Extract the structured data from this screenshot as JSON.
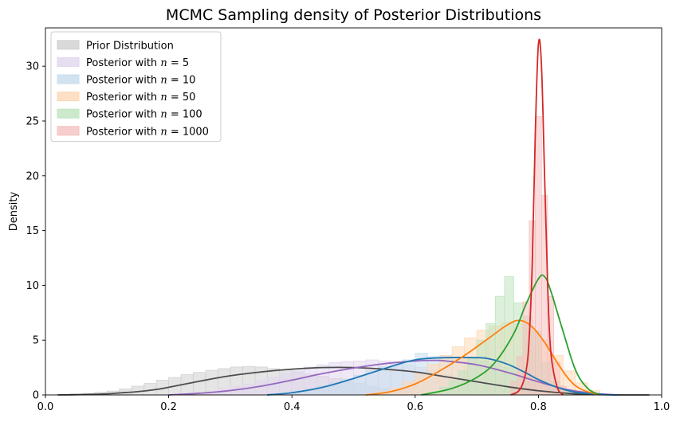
{
  "chart_data": {
    "type": "area",
    "title": "MCMC Sampling density of Posterior Distributions",
    "xlabel": "",
    "ylabel": "Density",
    "xlim": [
      0.0,
      1.0
    ],
    "ylim": [
      0,
      33.5
    ],
    "xticks": [
      "0.0",
      "0.2",
      "0.4",
      "0.6",
      "0.8",
      "1.0"
    ],
    "xtick_values": [
      0.0,
      0.2,
      0.4,
      0.6,
      0.8,
      1.0
    ],
    "yticks": [
      "0",
      "5",
      "10",
      "15",
      "20",
      "25",
      "30"
    ],
    "ytick_values": [
      0,
      5,
      10,
      15,
      20,
      25,
      30
    ],
    "grid": false,
    "legend_position": "top-left",
    "series": [
      {
        "name": "Prior Distribution",
        "color": "#4d4d4d",
        "hist_color": "#d0d0d0",
        "hist": {
          "bin_width": 0.02,
          "edges_start": 0.02,
          "heights": [
            0.05,
            0.1,
            0.15,
            0.25,
            0.35,
            0.55,
            0.8,
            1.05,
            1.35,
            1.6,
            1.85,
            2.05,
            2.25,
            2.4,
            2.55,
            2.6,
            2.55,
            2.4,
            2.3,
            2.1,
            1.9,
            1.7,
            1.5,
            1.25,
            1.05,
            0.8,
            0.6,
            0.45,
            0.3,
            0.2,
            0.12,
            0.08,
            0.05,
            0.03,
            0.02,
            0.01,
            0.01,
            0.01,
            0.005,
            0.005,
            0.003,
            0.003,
            0.002,
            0.002,
            0.001,
            0.001,
            0.001,
            0.001,
            0.0
          ]
        },
        "kde": {
          "x": [
            0.02,
            0.05,
            0.08,
            0.1,
            0.12,
            0.15,
            0.18,
            0.2,
            0.25,
            0.3,
            0.35,
            0.4,
            0.45,
            0.5,
            0.55,
            0.6,
            0.65,
            0.7,
            0.75,
            0.8,
            0.85,
            0.9,
            0.95,
            0.98
          ],
          "y": [
            0.0,
            0.02,
            0.06,
            0.1,
            0.18,
            0.3,
            0.5,
            0.7,
            1.25,
            1.75,
            2.1,
            2.35,
            2.5,
            2.5,
            2.35,
            2.1,
            1.65,
            1.2,
            0.75,
            0.38,
            0.14,
            0.03,
            0.0,
            0.0
          ]
        }
      },
      {
        "name": "Posterior with n = 5",
        "name_prefix": "Posterior with ",
        "name_italic": "n",
        "name_suffix": " = 5",
        "color": "#9467bd",
        "hist_color": "#e2d6ef",
        "hist": {
          "bin_width": 0.02,
          "edges_start": 0.2,
          "heights": [
            0.05,
            0.1,
            0.2,
            0.35,
            0.55,
            0.75,
            1.0,
            1.3,
            1.6,
            1.95,
            2.25,
            2.55,
            2.75,
            2.95,
            3.05,
            3.1,
            3.2,
            3.1,
            3.0,
            2.75,
            2.5,
            2.2,
            1.85,
            1.5,
            1.15,
            0.8,
            0.55,
            0.35,
            0.2,
            0.1,
            0.05,
            0.02
          ]
        },
        "kde": {
          "x": [
            0.2,
            0.25,
            0.3,
            0.35,
            0.4,
            0.45,
            0.5,
            0.55,
            0.6,
            0.63,
            0.65,
            0.7,
            0.75,
            0.8,
            0.85,
            0.9,
            0.93
          ],
          "y": [
            0.0,
            0.15,
            0.4,
            0.8,
            1.35,
            1.95,
            2.45,
            2.85,
            3.1,
            3.15,
            3.1,
            2.75,
            2.05,
            1.2,
            0.45,
            0.1,
            0.0
          ]
        }
      },
      {
        "name": "Posterior with n = 10",
        "name_prefix": "Posterior with ",
        "name_italic": "n",
        "name_suffix": " = 10",
        "color": "#1f77b4",
        "hist_color": "#c7dcec",
        "hist": {
          "bin_width": 0.02,
          "edges_start": 0.36,
          "heights": [
            0.1,
            0.2,
            0.35,
            0.55,
            0.8,
            1.1,
            1.45,
            1.8,
            2.2,
            2.6,
            2.95,
            3.2,
            3.8,
            3.5,
            3.55,
            3.4,
            3.3,
            3.1,
            2.85,
            2.5,
            2.1,
            1.7,
            1.25,
            0.85,
            0.5,
            0.25,
            0.1,
            0.05
          ]
        },
        "kde": {
          "x": [
            0.36,
            0.4,
            0.45,
            0.5,
            0.55,
            0.6,
            0.65,
            0.7,
            0.72,
            0.75,
            0.78,
            0.8,
            0.83,
            0.86,
            0.9,
            0.93
          ],
          "y": [
            0.0,
            0.2,
            0.7,
            1.5,
            2.4,
            3.2,
            3.4,
            3.4,
            3.3,
            2.8,
            2.0,
            1.4,
            0.7,
            0.25,
            0.05,
            0.0
          ]
        }
      },
      {
        "name": "Posterior with n = 50",
        "name_prefix": "Posterior with ",
        "name_italic": "n",
        "name_suffix": " = 50",
        "color": "#ff7f0e",
        "hist_color": "#fdd8b5",
        "hist": {
          "bin_width": 0.02,
          "edges_start": 0.52,
          "heights": [
            0.1,
            0.3,
            0.6,
            1.2,
            2.0,
            2.8,
            3.6,
            4.4,
            5.2,
            5.9,
            6.3,
            6.6,
            6.5,
            5.9,
            5.0,
            3.6,
            2.2,
            1.1,
            0.4,
            0.1
          ]
        },
        "kde": {
          "x": [
            0.52,
            0.56,
            0.6,
            0.64,
            0.68,
            0.72,
            0.75,
            0.77,
            0.79,
            0.81,
            0.83,
            0.85,
            0.87,
            0.9
          ],
          "y": [
            0.0,
            0.3,
            1.0,
            2.2,
            3.6,
            5.2,
            6.4,
            6.8,
            6.2,
            4.8,
            3.0,
            1.4,
            0.5,
            0.0
          ]
        }
      },
      {
        "name": "Posterior with n = 100",
        "name_prefix": "Posterior with ",
        "name_italic": "n",
        "name_suffix": " = 100",
        "color": "#2ca02c",
        "hist_color": "#bfe3bf",
        "hist": {
          "bin_width": 0.015,
          "edges_start": 0.61,
          "heights": [
            0.1,
            0.3,
            0.7,
            1.3,
            2.2,
            3.4,
            5.0,
            6.5,
            9.0,
            10.8,
            8.4,
            7.2,
            5.8,
            3.0,
            1.2,
            0.3,
            0.05
          ]
        },
        "kde": {
          "x": [
            0.61,
            0.66,
            0.7,
            0.73,
            0.76,
            0.78,
            0.8,
            0.81,
            0.82,
            0.84,
            0.86,
            0.88,
            0.9
          ],
          "y": [
            0.0,
            0.6,
            1.6,
            3.0,
            5.6,
            8.3,
            10.6,
            10.8,
            9.5,
            5.8,
            2.3,
            0.6,
            0.0
          ]
        }
      },
      {
        "name": "Posterior with n = 1000",
        "name_prefix": "Posterior with ",
        "name_italic": "n",
        "name_suffix": " = 1000",
        "color": "#d62728",
        "hist_color": "#f5c0c0",
        "hist": {
          "bin_width": 0.01,
          "edges_start": 0.755,
          "heights": [
            1.2,
            3.5,
            8.5,
            15.9,
            25.4,
            18.2,
            9.0,
            3.0,
            0.8
          ]
        },
        "kde": {
          "x": [
            0.755,
            0.77,
            0.78,
            0.785,
            0.79,
            0.795,
            0.8,
            0.805,
            0.81,
            0.815,
            0.82,
            0.83,
            0.84
          ],
          "y": [
            0.0,
            0.5,
            2.2,
            5.2,
            12.0,
            24.0,
            32.0,
            30.0,
            20.0,
            10.0,
            4.0,
            0.8,
            0.0
          ]
        }
      }
    ]
  }
}
